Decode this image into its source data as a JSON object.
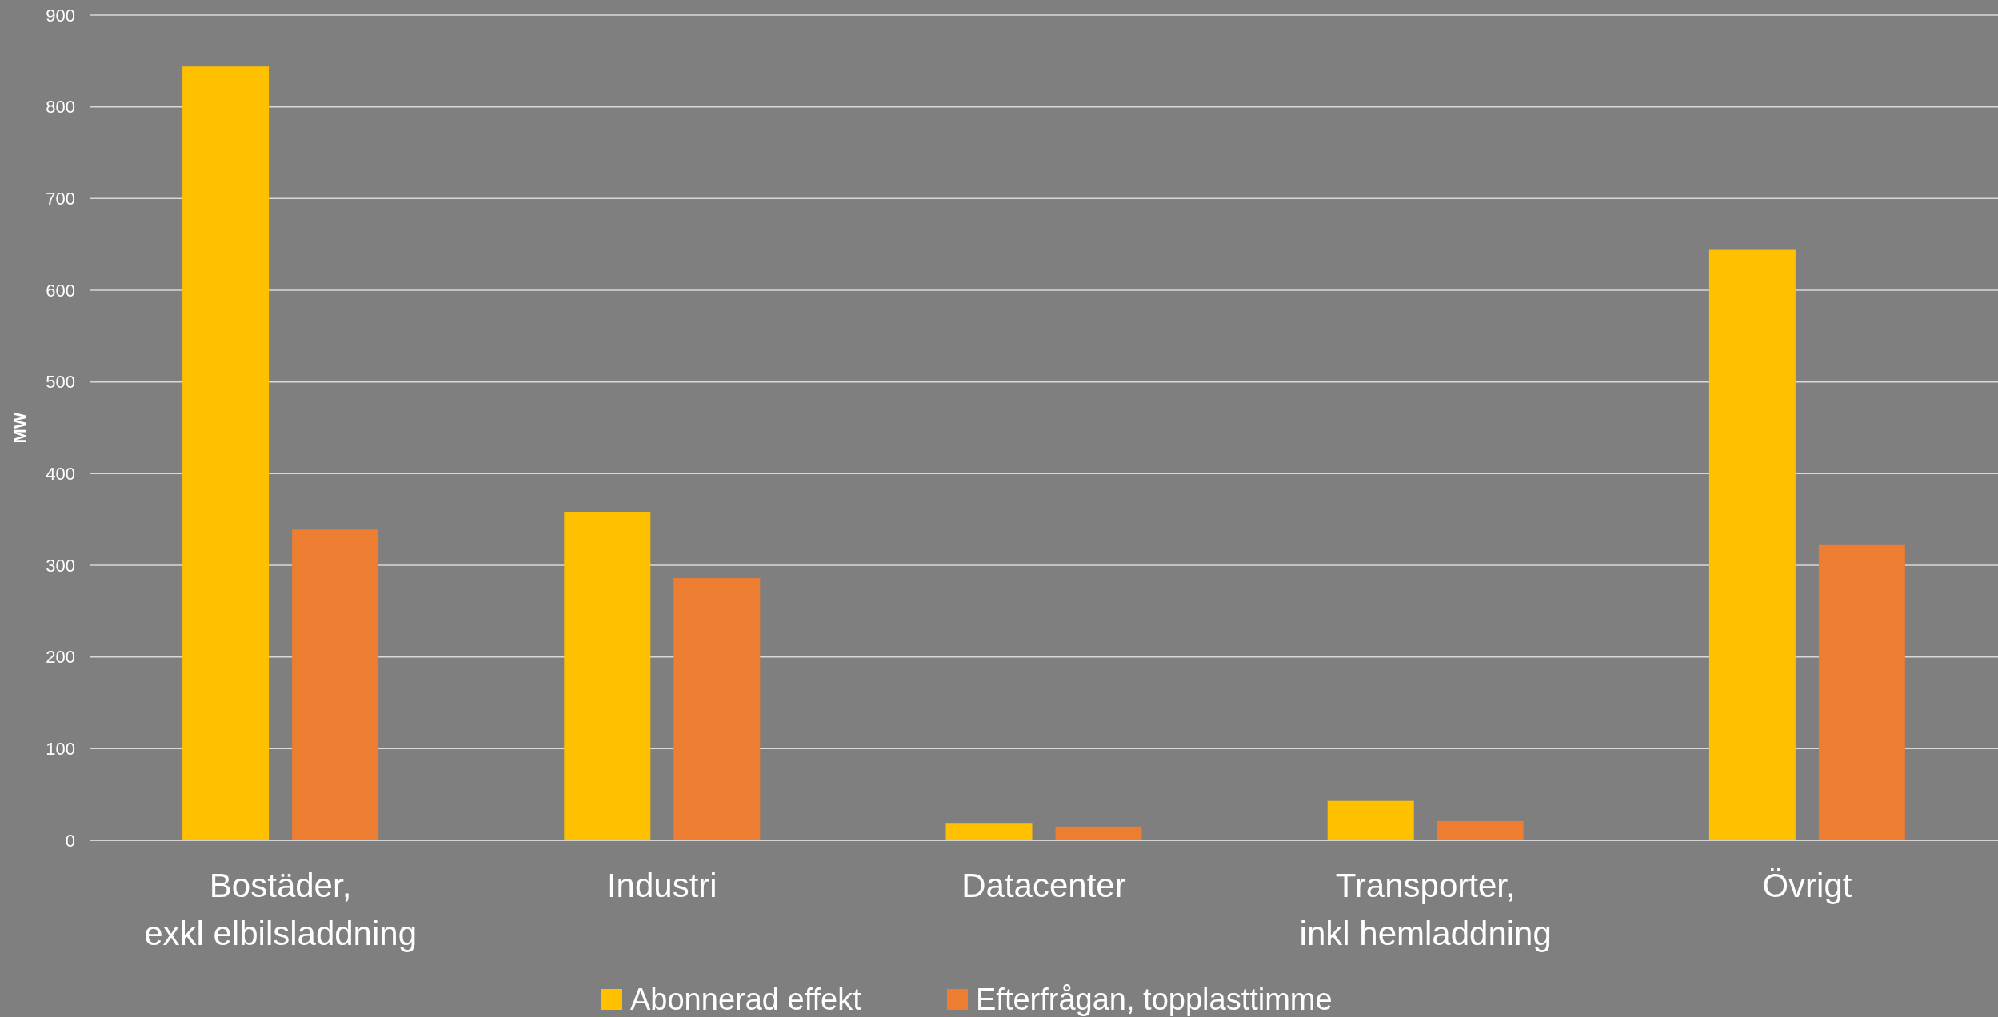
{
  "chart_data": {
    "type": "bar",
    "ylabel": "MW",
    "categories": [
      "Bostäder,\nexkl elbilsladdning",
      "Industri",
      "Datacenter",
      "Transporter,\ninkl hemladdning",
      "Övrigt"
    ],
    "series": [
      {
        "name": "Abonnerad effekt",
        "color": "#ffc000",
        "values": [
          844,
          358,
          19,
          43,
          644
        ]
      },
      {
        "name": "Efterfrågan, topplasttimme",
        "color": "#ed7d31",
        "values": [
          339,
          286,
          15,
          21,
          322
        ]
      }
    ],
    "ylim": [
      0,
      900
    ],
    "yticks": [
      0,
      100,
      200,
      300,
      400,
      500,
      600,
      700,
      800,
      900
    ],
    "grid": "y",
    "legend": "bottom"
  }
}
